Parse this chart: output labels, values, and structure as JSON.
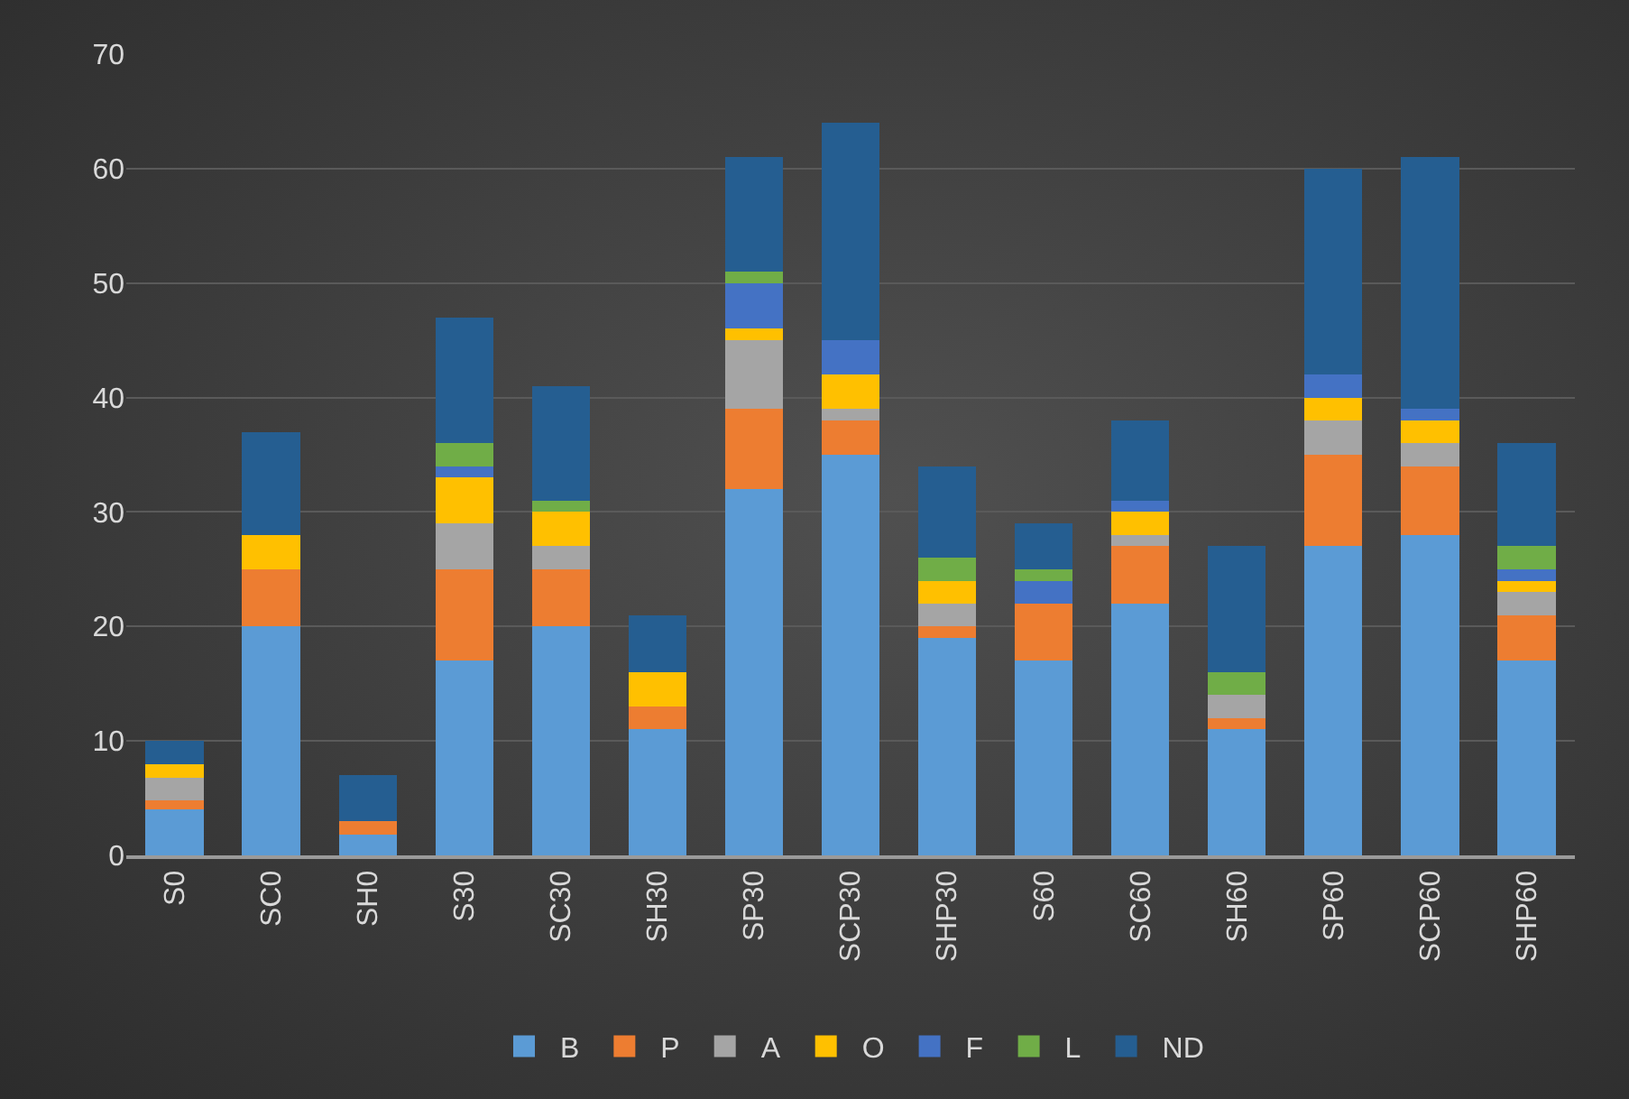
{
  "chart_data": {
    "type": "bar",
    "stacked": true,
    "categories": [
      "S0",
      "SC0",
      "SH0",
      "S30",
      "SC30",
      "SH30",
      "SP30",
      "SCP30",
      "SHP30",
      "S60",
      "SC60",
      "SH60",
      "SP60",
      "SCP60",
      "SHP60"
    ],
    "series": [
      {
        "name": "B",
        "color": "#5b9bd5",
        "values": [
          4,
          20,
          1.8,
          17,
          20,
          11,
          32,
          35,
          19,
          17,
          22,
          11,
          27,
          28,
          17
        ]
      },
      {
        "name": "P",
        "color": "#ed7d31",
        "values": [
          0.8,
          5,
          1.2,
          8,
          5,
          2,
          7,
          3,
          1,
          5,
          5,
          1,
          8,
          6,
          4
        ]
      },
      {
        "name": "A",
        "color": "#a5a5a5",
        "values": [
          2,
          0,
          0,
          4,
          2,
          0,
          6,
          1,
          2,
          0,
          1,
          2,
          3,
          2,
          2
        ]
      },
      {
        "name": "O",
        "color": "#ffc000",
        "values": [
          1.2,
          3,
          0,
          4,
          3,
          3,
          1,
          3,
          2,
          0,
          2,
          0,
          2,
          2,
          1
        ]
      },
      {
        "name": "F",
        "color": "#4472c4",
        "values": [
          0,
          0,
          0,
          1,
          0,
          0,
          4,
          3,
          0,
          2,
          1,
          0,
          2,
          1,
          1
        ]
      },
      {
        "name": "L",
        "color": "#70ad47",
        "values": [
          0,
          0,
          0,
          2,
          1,
          0,
          1,
          0,
          2,
          1,
          0,
          2,
          0,
          0,
          2
        ]
      },
      {
        "name": "ND",
        "color": "#255e91",
        "values": [
          2,
          9,
          4,
          11,
          10,
          5,
          10,
          19,
          8,
          4,
          7,
          11,
          18,
          22,
          9
        ]
      }
    ],
    "ylim": [
      0,
      70
    ],
    "yticks": [
      0,
      10,
      20,
      30,
      40,
      50,
      60,
      70
    ],
    "grid": "y",
    "legend": "bottom"
  }
}
